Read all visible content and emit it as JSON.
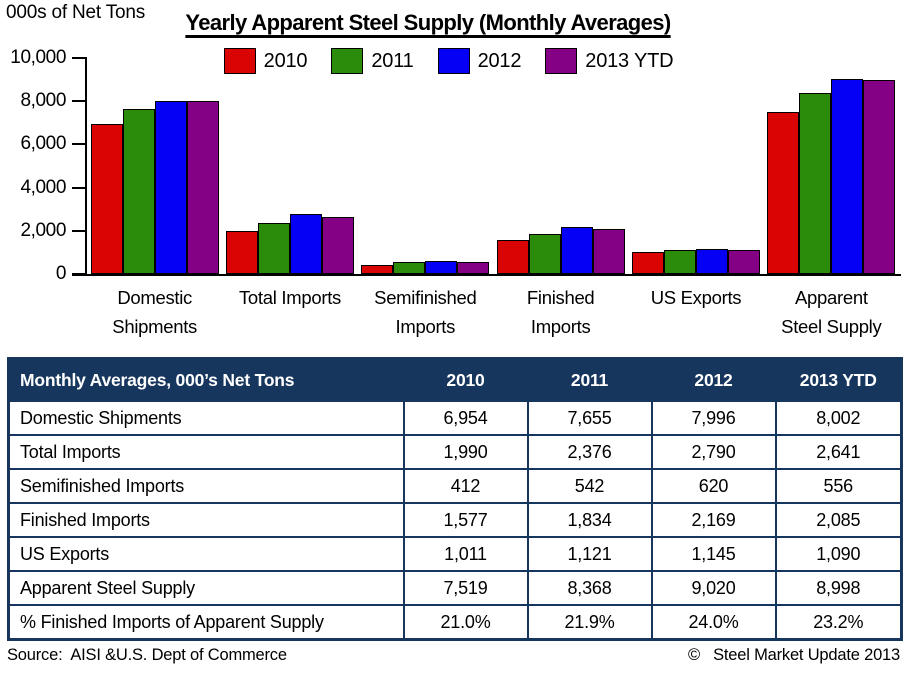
{
  "chart_data": {
    "type": "bar",
    "title": "Yearly Apparent Steel Supply (Monthly Averages)",
    "ylabel": "000s of Net Tons",
    "ylim": [
      0,
      10000
    ],
    "yticks": [
      0,
      2000,
      4000,
      6000,
      8000,
      10000
    ],
    "ytick_labels": [
      "0",
      "2,000",
      "4,000",
      "6,000",
      "8,000",
      "10,000"
    ],
    "grid": false,
    "legend_position": "top-center",
    "categories": [
      "Domestic Shipments",
      "Total Imports",
      "Semifinished Imports",
      "Finished Imports",
      "US Exports",
      "Apparent Steel Supply"
    ],
    "category_label_lines": [
      [
        "Domestic",
        "Shipments"
      ],
      [
        "Total Imports"
      ],
      [
        "Semifinished",
        "Imports"
      ],
      [
        "Finished",
        "Imports"
      ],
      [
        "US Exports"
      ],
      [
        "Apparent",
        "Steel Supply"
      ]
    ],
    "series": [
      {
        "name": "2010",
        "color": "#DB0404",
        "values": [
          6954,
          1990,
          412,
          1577,
          1011,
          7519
        ]
      },
      {
        "name": "2011",
        "color": "#2A8C0A",
        "values": [
          7655,
          2376,
          542,
          1834,
          1121,
          8368
        ]
      },
      {
        "name": "2012",
        "color": "#0500F5",
        "values": [
          7996,
          2790,
          620,
          2169,
          1145,
          9020
        ]
      },
      {
        "name": "2013 YTD",
        "color": "#840084",
        "values": [
          8002,
          2641,
          556,
          2085,
          1090,
          8998
        ]
      }
    ]
  },
  "table": {
    "header": [
      "Monthly Averages, 000’s Net Tons",
      "2010",
      "2011",
      "2012",
      "2013 YTD"
    ],
    "rows": [
      [
        "Domestic Shipments",
        "6,954",
        "7,655",
        "7,996",
        "8,002"
      ],
      [
        "Total Imports",
        "1,990",
        "2,376",
        "2,790",
        "2,641"
      ],
      [
        "Semifinished Imports",
        "412",
        "542",
        "620",
        "556"
      ],
      [
        "Finished Imports",
        "1,577",
        "1,834",
        "2,169",
        "2,085"
      ],
      [
        "US Exports",
        "1,011",
        "1,121",
        "1,145",
        "1,090"
      ],
      [
        "Apparent Steel Supply",
        "7,519",
        "8,368",
        "9,020",
        "8,998"
      ],
      [
        "% Finished Imports of Apparent Supply",
        "21.0%",
        "21.9%",
        "24.0%",
        "23.2%"
      ]
    ]
  },
  "footer": {
    "source": "Source:  AISI &U.S. Dept of Commerce",
    "copyright": "©   Steel Market Update 2013"
  },
  "colors": {
    "table_navy": "#17365D",
    "axis_black": "#000000",
    "bar_2010": "#DB0404",
    "bar_2011": "#2A8C0A",
    "bar_2012": "#0500F5",
    "bar_2013_ytd": "#840084"
  }
}
